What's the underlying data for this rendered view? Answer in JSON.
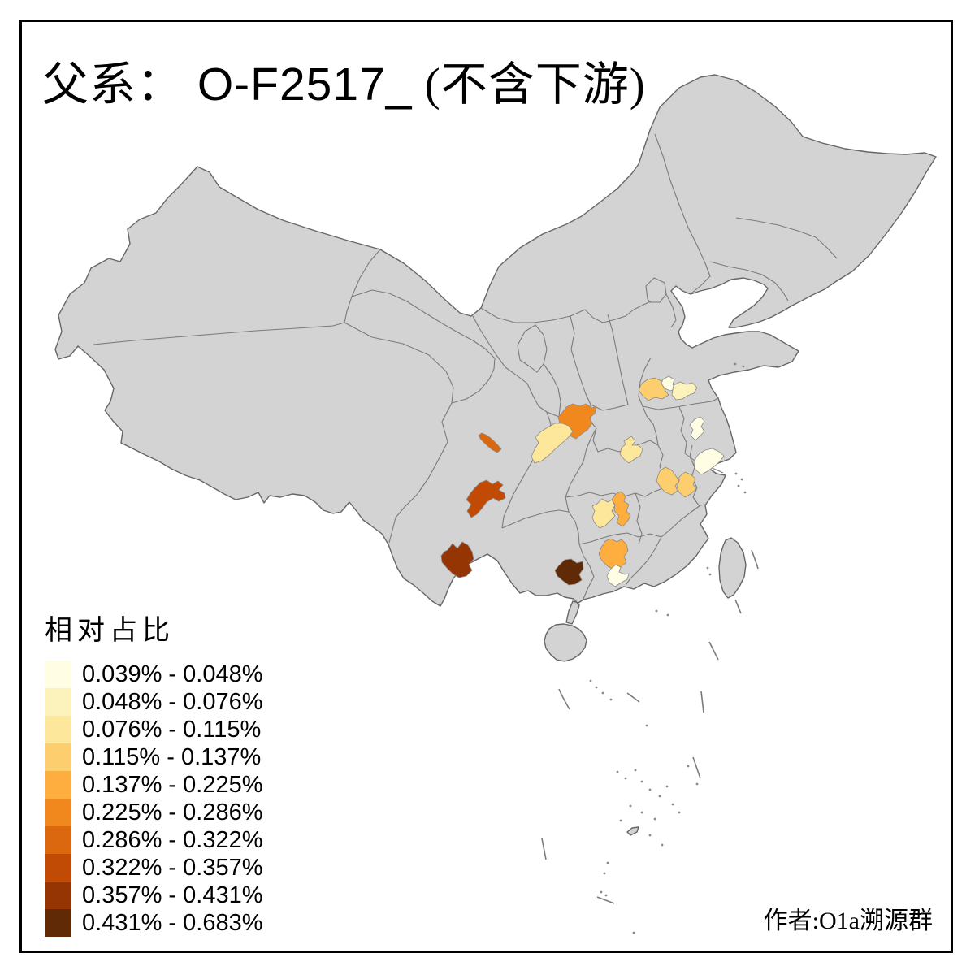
{
  "title": {
    "prefix": "父系：",
    "name": " O-F2517_",
    "suffix": " (不含下游)"
  },
  "author": "作者:O1a溯源群",
  "legend": {
    "title": "相对占比",
    "entries": [
      {
        "range": "0.039% - 0.048%",
        "color": "#FFFDE4"
      },
      {
        "range": "0.048% - 0.076%",
        "color": "#FCF3BC"
      },
      {
        "range": "0.076% - 0.115%",
        "color": "#FDE79B"
      },
      {
        "range": "0.115% - 0.137%",
        "color": "#FDCE6E"
      },
      {
        "range": "0.137% - 0.225%",
        "color": "#FDAE3E"
      },
      {
        "range": "0.225% - 0.286%",
        "color": "#F1881E"
      },
      {
        "range": "0.286% - 0.322%",
        "color": "#DB670F"
      },
      {
        "range": "0.322% - 0.357%",
        "color": "#C14A04"
      },
      {
        "range": "0.357% - 0.431%",
        "color": "#953504"
      },
      {
        "range": "0.431% - 0.683%",
        "color": "#5F2A05"
      }
    ]
  },
  "map": {
    "land_fill": "#D3D3D3",
    "coast_color": "#666666",
    "inner_border_color": "#7B7B7B",
    "sea_fill": "#FFFFFF",
    "frame_color": "#000000",
    "regions": [
      {
        "id": "r_shandong_nw",
        "name": "NW Shandong prefecture",
        "class": 4,
        "range": "0.115% - 0.137%"
      },
      {
        "id": "r_shandong_n1",
        "name": "N Shandong prefecture",
        "class": 1,
        "range": "0.039% - 0.048%"
      },
      {
        "id": "r_shandong_ne",
        "name": "NE Shandong prefecture",
        "class": 2,
        "range": "0.048% - 0.076%"
      },
      {
        "id": "r_shaanxi_s",
        "name": "S Shaanxi prefecture",
        "class": 6,
        "range": "0.225% - 0.286%"
      },
      {
        "id": "r_sichuan_ne",
        "name": "NE Sichuan prefecture",
        "class": 3,
        "range": "0.076% - 0.115%"
      },
      {
        "id": "r_sichuan_nw",
        "name": "NW Sichuan prefecture",
        "class": 7,
        "range": "0.286% - 0.322%"
      },
      {
        "id": "r_sichuan_s",
        "name": "S Sichuan prefecture",
        "class": 8,
        "range": "0.322% - 0.357%"
      },
      {
        "id": "r_yunnan_c",
        "name": "C Yunnan prefecture",
        "class": 9,
        "range": "0.357% - 0.431%"
      },
      {
        "id": "r_guangxi_c",
        "name": "C Guangxi prefecture",
        "class": 10,
        "range": "0.431% - 0.683%"
      },
      {
        "id": "r_guangdong_n",
        "name": "N Guangdong prefecture",
        "class": 5,
        "range": "0.137% - 0.225%"
      },
      {
        "id": "r_guangdong_c",
        "name": "C Guangdong prefecture",
        "class": 1,
        "range": "0.039% - 0.048%"
      },
      {
        "id": "r_hunan_w",
        "name": "C Hunan prefecture (W)",
        "class": 3,
        "range": "0.076% - 0.115%"
      },
      {
        "id": "r_hunan_e",
        "name": "C Hunan prefecture (E)",
        "class": 5,
        "range": "0.137% - 0.225%"
      },
      {
        "id": "r_hubei_n",
        "name": "N Hubei prefecture",
        "class": 3,
        "range": "0.076% - 0.115%"
      },
      {
        "id": "r_jx_ne_w",
        "name": "NE Jiangxi prefecture (W)",
        "class": 4,
        "range": "0.115% - 0.137%"
      },
      {
        "id": "r_jx_ne_e",
        "name": "NE Jiangxi prefecture (E)",
        "class": 4,
        "range": "0.115% - 0.137%"
      },
      {
        "id": "r_jiangsu_c",
        "name": "C Jiangsu prefecture",
        "class": 1,
        "range": "0.039% - 0.048%"
      },
      {
        "id": "r_zhejiang_n",
        "name": "N Zhejiang prefecture",
        "class": 1,
        "range": "0.039% - 0.048%"
      }
    ]
  }
}
